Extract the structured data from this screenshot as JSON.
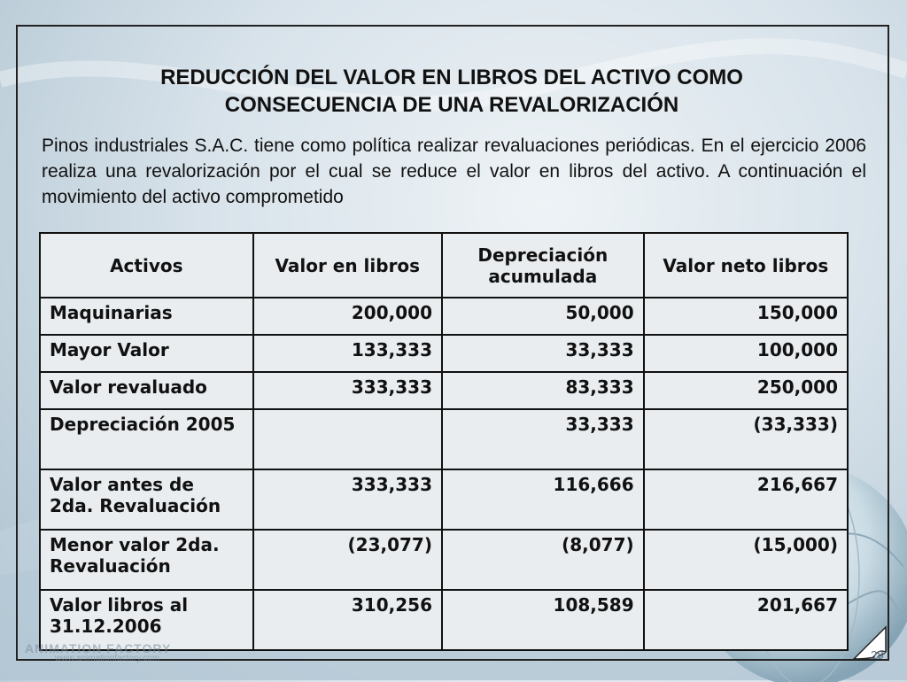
{
  "slide": {
    "title_line1": "REDUCCIÓN DEL VALOR EN LIBROS DEL ACTIVO COMO",
    "title_line2": "CONSECUENCIA DE UNA REVALORIZACIÓN",
    "intro": "Pinos industriales S.A.C.  tiene como política realizar revaluaciones periódicas. En el ejercicio 2006 realiza una revalorización por el cual se reduce el valor en libros del activo. A continuación el movimiento del activo comprometido",
    "page_number": "28",
    "watermark": "ANIMATION FACTORY",
    "watermark_url": "www.animationfactory.com"
  },
  "table": {
    "headers": [
      "Activos",
      "Valor en libros",
      "Depreciación acumulada",
      "Valor neto libros"
    ],
    "rows": [
      [
        "Maquinarias",
        "200,000",
        "50,000",
        "150,000"
      ],
      [
        "Mayor Valor",
        "133,333",
        "33,333",
        "100,000"
      ],
      [
        "Valor revaluado",
        "333,333",
        "83,333",
        "250,000"
      ],
      [
        "Depreciación 2005",
        "",
        "33,333",
        "(33,333)"
      ],
      [
        "Valor antes de 2da. Revaluación",
        "333,333",
        "116,666",
        "216,667"
      ],
      [
        "Menor valor 2da. Revaluación",
        "(23,077)",
        "(8,077)",
        "(15,000)"
      ],
      [
        "Valor libros al 31.12.2006",
        "310,256",
        "108,589",
        "201,667"
      ]
    ]
  },
  "colors": {
    "frame": "#222222",
    "table_bg": "#e9edf0",
    "text": "#111111"
  },
  "icons": [
    "globe-decoration-icon",
    "page-curl-icon",
    "wave-background"
  ]
}
